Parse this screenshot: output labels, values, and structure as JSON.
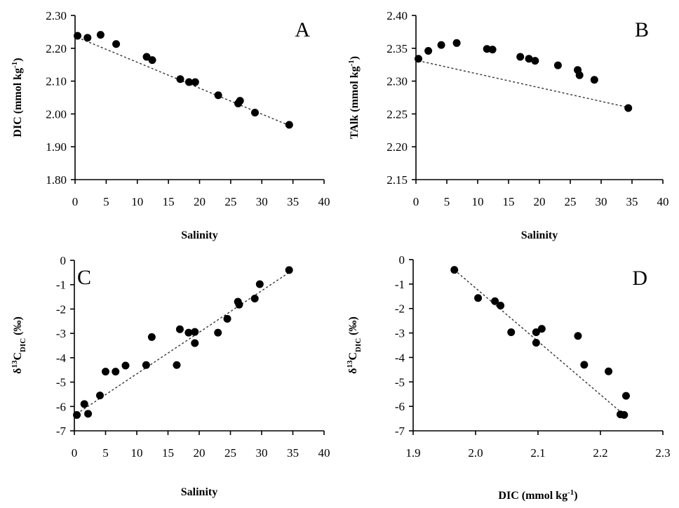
{
  "chart_data": [
    {
      "type": "scatter",
      "panel_label": "A",
      "xlabel": "Salinity",
      "ylabel": "DIC (mmol kg-1)",
      "ylabel_parts": {
        "main": "DIC (mmol kg",
        "sup": "-1",
        "close": ")"
      },
      "xlim": [
        0,
        40
      ],
      "ylim": [
        1.8,
        2.3
      ],
      "xticks": [
        "0",
        "5",
        "10",
        "15",
        "20",
        "25",
        "30",
        "35",
        "40"
      ],
      "yticks": [
        "1.80",
        "1.90",
        "2.00",
        "2.10",
        "2.20",
        "2.30"
      ],
      "points": [
        {
          "x": 0.4,
          "y": 2.238
        },
        {
          "x": 2.0,
          "y": 2.232
        },
        {
          "x": 4.1,
          "y": 2.241
        },
        {
          "x": 6.6,
          "y": 2.213
        },
        {
          "x": 11.5,
          "y": 2.174
        },
        {
          "x": 12.4,
          "y": 2.164
        },
        {
          "x": 16.9,
          "y": 2.106
        },
        {
          "x": 18.3,
          "y": 2.097
        },
        {
          "x": 19.3,
          "y": 2.097
        },
        {
          "x": 23.0,
          "y": 2.057
        },
        {
          "x": 26.2,
          "y": 2.032
        },
        {
          "x": 26.5,
          "y": 2.04
        },
        {
          "x": 28.9,
          "y": 2.004
        },
        {
          "x": 34.4,
          "y": 1.967
        }
      ],
      "trendline": [
        {
          "x": 0.4,
          "y": 2.233
        },
        {
          "x": 34.4,
          "y": 1.965
        }
      ]
    },
    {
      "type": "scatter",
      "panel_label": "B",
      "xlabel": "Salinity",
      "ylabel": "TAlk (mmol kg-1)",
      "ylabel_parts": {
        "main": "TAlk (mmol kg",
        "sup": "-1",
        "close": ")"
      },
      "xlim": [
        0,
        40
      ],
      "ylim": [
        2.15,
        2.4
      ],
      "xticks": [
        "0",
        "5",
        "10",
        "15",
        "20",
        "25",
        "30",
        "35",
        "40"
      ],
      "yticks": [
        "2.15",
        "2.20",
        "2.25",
        "2.30",
        "2.35",
        "2.40"
      ],
      "points": [
        {
          "x": 0.4,
          "y": 2.334
        },
        {
          "x": 2.0,
          "y": 2.346
        },
        {
          "x": 4.1,
          "y": 2.355
        },
        {
          "x": 6.6,
          "y": 2.358
        },
        {
          "x": 11.5,
          "y": 2.349
        },
        {
          "x": 12.4,
          "y": 2.348
        },
        {
          "x": 16.9,
          "y": 2.337
        },
        {
          "x": 18.3,
          "y": 2.334
        },
        {
          "x": 19.3,
          "y": 2.331
        },
        {
          "x": 23.0,
          "y": 2.324
        },
        {
          "x": 26.2,
          "y": 2.317
        },
        {
          "x": 26.5,
          "y": 2.309
        },
        {
          "x": 28.9,
          "y": 2.302
        },
        {
          "x": 34.4,
          "y": 2.259
        }
      ],
      "trendline": [
        {
          "x": 0.4,
          "y": 2.331
        },
        {
          "x": 34.4,
          "y": 2.26
        }
      ]
    },
    {
      "type": "scatter",
      "panel_label": "C",
      "xlabel": "Salinity",
      "ylabel": "δ13CDIC (‰)",
      "ylabel_parts": {
        "pre": "δ",
        "sup": "13",
        "main": "C",
        "sub": "DIC",
        "close": " (‰)"
      },
      "xlim": [
        0,
        40
      ],
      "ylim": [
        -7,
        0
      ],
      "xticks": [
        "0",
        "5",
        "10",
        "15",
        "20",
        "25",
        "30",
        "35",
        "40"
      ],
      "yticks": [
        "-7",
        "-6",
        "-5",
        "-4",
        "-3",
        "-2",
        "-1",
        "0"
      ],
      "points": [
        {
          "x": 0.4,
          "y": -6.35
        },
        {
          "x": 1.6,
          "y": -5.9
        },
        {
          "x": 2.2,
          "y": -6.3
        },
        {
          "x": 4.1,
          "y": -5.55
        },
        {
          "x": 5.0,
          "y": -4.57
        },
        {
          "x": 6.6,
          "y": -4.57
        },
        {
          "x": 8.2,
          "y": -4.32
        },
        {
          "x": 11.5,
          "y": -4.3
        },
        {
          "x": 12.4,
          "y": -3.15
        },
        {
          "x": 16.4,
          "y": -4.3
        },
        {
          "x": 16.9,
          "y": -2.83
        },
        {
          "x": 18.3,
          "y": -2.97
        },
        {
          "x": 19.3,
          "y": -2.94
        },
        {
          "x": 19.3,
          "y": -3.4
        },
        {
          "x": 23.0,
          "y": -2.97
        },
        {
          "x": 24.5,
          "y": -2.4
        },
        {
          "x": 26.2,
          "y": -1.7
        },
        {
          "x": 26.4,
          "y": -1.82
        },
        {
          "x": 28.9,
          "y": -1.57
        },
        {
          "x": 29.7,
          "y": -0.98
        },
        {
          "x": 34.4,
          "y": -0.4
        }
      ],
      "trendline": [
        {
          "x": 0.4,
          "y": -6.3
        },
        {
          "x": 34.4,
          "y": -0.5
        }
      ]
    },
    {
      "type": "scatter",
      "panel_label": "D",
      "xlabel": "DIC (mmol kg-1)",
      "xlabel_parts": {
        "main": "DIC (mmol kg",
        "sup": "-1",
        "close": ")"
      },
      "ylabel": "δ13CDIC (‰)",
      "ylabel_parts": {
        "pre": "δ",
        "sup": "13",
        "main": "C",
        "sub": "DIC",
        "close": " (‰)"
      },
      "xlim": [
        1.9,
        2.3
      ],
      "ylim": [
        -7,
        0
      ],
      "xticks": [
        "1.9",
        "2.0",
        "2.1",
        "2.2",
        "2.3"
      ],
      "yticks": [
        "-7",
        "-6",
        "-5",
        "-4",
        "-3",
        "-2",
        "-1",
        "0"
      ],
      "points": [
        {
          "x": 1.966,
          "y": -0.42
        },
        {
          "x": 2.004,
          "y": -1.57
        },
        {
          "x": 2.031,
          "y": -1.7
        },
        {
          "x": 2.04,
          "y": -1.88
        },
        {
          "x": 2.057,
          "y": -2.97
        },
        {
          "x": 2.097,
          "y": -3.4
        },
        {
          "x": 2.097,
          "y": -2.97
        },
        {
          "x": 2.106,
          "y": -2.83
        },
        {
          "x": 2.164,
          "y": -3.12
        },
        {
          "x": 2.174,
          "y": -4.3
        },
        {
          "x": 2.213,
          "y": -4.57
        },
        {
          "x": 2.232,
          "y": -6.33
        },
        {
          "x": 2.238,
          "y": -6.35
        },
        {
          "x": 2.241,
          "y": -5.57
        }
      ],
      "trendline": [
        {
          "x": 1.966,
          "y": -0.42
        },
        {
          "x": 2.238,
          "y": -6.35
        }
      ]
    }
  ]
}
